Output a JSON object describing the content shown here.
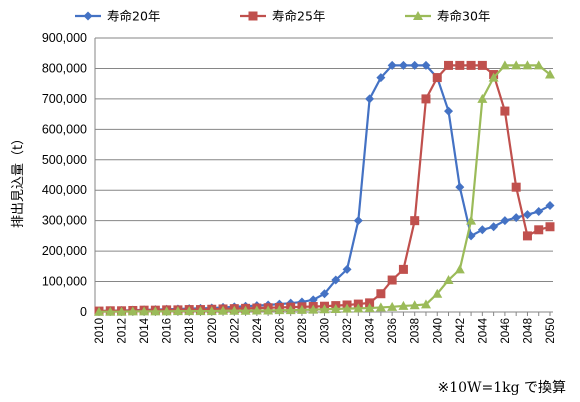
{
  "chart_data": {
    "type": "line",
    "title": "",
    "xlabel": "",
    "ylabel": "排出見込量（t）",
    "x": [
      2010,
      2011,
      2012,
      2013,
      2014,
      2015,
      2016,
      2017,
      2018,
      2019,
      2020,
      2021,
      2022,
      2023,
      2024,
      2025,
      2026,
      2027,
      2028,
      2029,
      2030,
      2031,
      2032,
      2033,
      2034,
      2035,
      2036,
      2037,
      2038,
      2039,
      2040,
      2041,
      2042,
      2043,
      2044,
      2045,
      2046,
      2047,
      2048,
      2049,
      2050
    ],
    "x_tick_labels": [
      "2010",
      "2012",
      "2014",
      "2016",
      "2018",
      "2020",
      "2022",
      "2024",
      "2026",
      "2028",
      "2030",
      "2032",
      "2034",
      "2036",
      "2038",
      "2040",
      "2042",
      "2044",
      "2046",
      "2048",
      "2050"
    ],
    "ylim": [
      0,
      900000
    ],
    "y_tick_labels": [
      "0",
      "100,000",
      "200,000",
      "300,000",
      "400,000",
      "500,000",
      "600,000",
      "700,000",
      "800,000",
      "900,000"
    ],
    "grid": true,
    "legend_position": "top",
    "series": [
      {
        "name": "寿命20年",
        "color": "#4472C4",
        "marker": "diamond",
        "values": [
          3000,
          4000,
          5000,
          6000,
          7000,
          8000,
          9000,
          10000,
          11000,
          12000,
          13000,
          15000,
          17000,
          19000,
          21000,
          23000,
          26000,
          29000,
          33000,
          40000,
          60000,
          105000,
          140000,
          300000,
          700000,
          770000,
          810000,
          810000,
          810000,
          810000,
          770000,
          660000,
          410000,
          250000,
          270000,
          280000,
          300000,
          310000,
          320000,
          330000,
          350000
        ]
      },
      {
        "name": "寿命25年",
        "color": "#C0504D",
        "marker": "square",
        "values": [
          3000,
          4000,
          4000,
          5000,
          6000,
          6000,
          7000,
          7000,
          8000,
          8000,
          9000,
          10000,
          11000,
          12000,
          13000,
          14000,
          15000,
          16000,
          17000,
          18000,
          19000,
          21000,
          23000,
          26000,
          30000,
          60000,
          105000,
          140000,
          300000,
          700000,
          770000,
          810000,
          810000,
          810000,
          810000,
          780000,
          660000,
          410000,
          250000,
          270000,
          280000
        ]
      },
      {
        "name": "寿命30年",
        "color": "#9BBB59",
        "marker": "triangle",
        "values": [
          1000,
          1000,
          1000,
          2000,
          2000,
          2000,
          2000,
          3000,
          3000,
          3000,
          3000,
          4000,
          4000,
          4000,
          5000,
          5000,
          6000,
          6000,
          7000,
          8000,
          9000,
          10000,
          11000,
          12000,
          13000,
          15000,
          17000,
          20000,
          22000,
          25000,
          60000,
          105000,
          140000,
          300000,
          700000,
          770000,
          810000,
          810000,
          810000,
          810000,
          780000
        ]
      }
    ],
    "footnote": "※10W=1kg で換算"
  }
}
